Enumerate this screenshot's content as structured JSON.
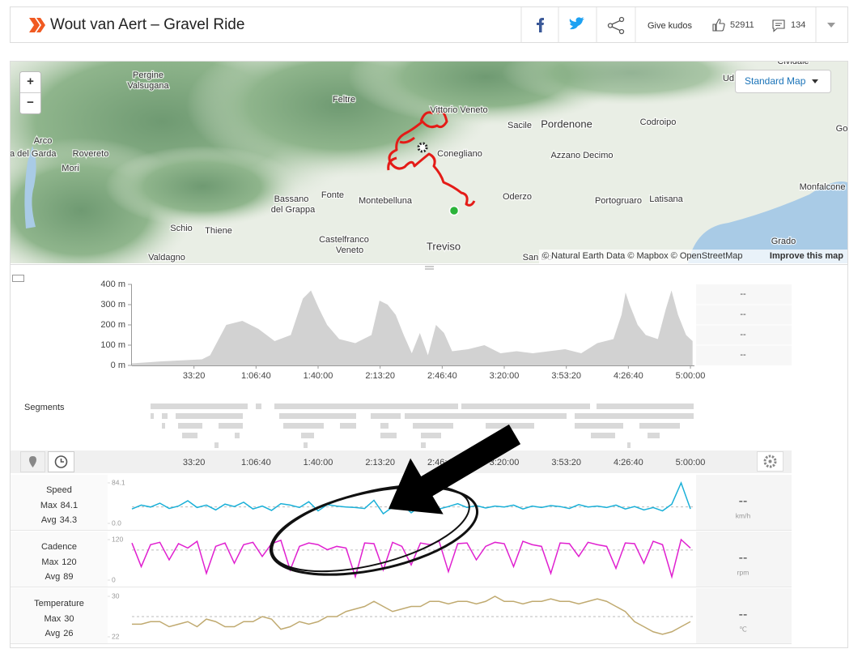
{
  "header": {
    "title": "Wout van Aert – Gravel Ride",
    "kudos_label": "Give kudos",
    "kudos": 52911,
    "comments": 134
  },
  "map": {
    "labels": [
      "Pergine",
      "Valsugana",
      "Feltre",
      "Vittorio Veneto",
      "Sacile",
      "Pordenone",
      "Codroipo",
      "Ud",
      "Arco",
      "va del Garda",
      "Rovereto",
      "Mori",
      "Conegliano",
      "Azzano Decimo",
      "Bassano",
      "del Grappa",
      "Fonte",
      "Montebelluna",
      "Oderzo",
      "Portogruaro",
      "Latisana",
      "Monfalcone",
      "Go",
      "Schio",
      "Thiene",
      "Castelfranco",
      "Veneto",
      "Treviso",
      "Valdagno",
      "Grado",
      "San Do",
      "Cividale"
    ],
    "style": "Standard Map",
    "zoom_in": "+",
    "zoom_out": "−",
    "attribution": "© Natural Earth Data © Mapbox © OpenStreetMap",
    "improve": "Improve this map"
  },
  "segments_label": "Segments",
  "chart_data": [
    {
      "type": "area",
      "color": "#d2d2d2",
      "xlim": [
        0,
        18130
      ],
      "ylim": [
        0,
        400
      ],
      "yticks": [
        {
          "value": 0,
          "label": "0 m"
        },
        {
          "value": 100,
          "label": "100 m"
        },
        {
          "value": 200,
          "label": "200 m"
        },
        {
          "value": 300,
          "label": "300 m"
        },
        {
          "value": 400,
          "label": "400 m"
        }
      ],
      "xticks": [
        {
          "value": 2000,
          "label": "33:20"
        },
        {
          "value": 4000,
          "label": "1:06:40"
        },
        {
          "value": 6000,
          "label": "1:40:00"
        },
        {
          "value": 8000,
          "label": "2:13:20"
        },
        {
          "value": 10000,
          "label": "2:46:40"
        },
        {
          "value": 12000,
          "label": "3:20:00"
        },
        {
          "value": 14000,
          "label": "3:53:20"
        },
        {
          "value": 16000,
          "label": "4:26:40"
        },
        {
          "value": 18000,
          "label": "5:00:00"
        }
      ],
      "x": [
        0,
        960,
        2260,
        2520,
        3040,
        3560,
        4080,
        4600,
        5120,
        5510,
        5770,
        6030,
        6290,
        6680,
        7200,
        7720,
        7980,
        8240,
        8500,
        8760,
        9020,
        9280,
        9540,
        9800,
        10060,
        10320,
        10840,
        11360,
        11880,
        12400,
        12920,
        13440,
        13960,
        14480,
        15000,
        15520,
        15780,
        15910,
        16040,
        16300,
        16560,
        16950,
        17210,
        17390,
        17600,
        17860,
        18070
      ],
      "values": [
        10,
        20,
        30,
        50,
        200,
        220,
        180,
        120,
        150,
        330,
        370,
        280,
        200,
        130,
        110,
        150,
        320,
        300,
        250,
        150,
        60,
        160,
        50,
        200,
        160,
        70,
        80,
        100,
        60,
        70,
        60,
        70,
        80,
        60,
        110,
        130,
        250,
        360,
        300,
        200,
        150,
        130,
        280,
        370,
        250,
        150,
        120
      ],
      "stats": [
        "--",
        "--",
        "--",
        "--"
      ]
    },
    {
      "type": "line",
      "name": "Speed",
      "color": "#1ab0d8",
      "max_label": "Max",
      "max": 84.1,
      "avg_label": "Avg",
      "avg": 34.3,
      "unit": "km/h",
      "current": "--",
      "xlim": [
        0,
        18130
      ],
      "ylim": [
        0,
        84.1
      ],
      "yticks": [
        {
          "value": 0,
          "label": "0.0"
        },
        84.1
      ],
      "x": [
        0,
        300,
        600,
        900,
        1200,
        1500,
        1800,
        2100,
        2400,
        2700,
        3000,
        3300,
        3600,
        3900,
        4200,
        4500,
        4800,
        5100,
        5400,
        5700,
        6000,
        6300,
        6600,
        6900,
        7200,
        7500,
        7800,
        8100,
        8400,
        8700,
        9000,
        9300,
        9600,
        9900,
        10200,
        10500,
        10800,
        11100,
        11400,
        11700,
        12000,
        12300,
        12600,
        12900,
        13200,
        13500,
        13800,
        14100,
        14400,
        14700,
        15000,
        15300,
        15600,
        15900,
        16200,
        16500,
        16800,
        17100,
        17400,
        17700,
        18000
      ],
      "values": [
        30,
        38,
        34,
        42,
        31,
        36,
        47,
        33,
        38,
        28,
        40,
        35,
        44,
        30,
        36,
        27,
        41,
        38,
        33,
        45,
        26,
        39,
        36,
        34,
        33,
        31,
        48,
        20,
        34,
        40,
        22,
        36,
        38,
        30,
        35,
        41,
        33,
        37,
        32,
        36,
        34,
        38,
        30,
        36,
        33,
        37,
        35,
        31,
        39,
        34,
        36,
        33,
        38,
        30,
        35,
        28,
        33,
        26,
        40,
        84.1,
        30
      ]
    },
    {
      "type": "line",
      "name": "Cadence",
      "color": "#e020d0",
      "max_label": "Max",
      "max": 120,
      "avg_label": "Avg",
      "avg": 89,
      "unit": "rpm",
      "current": "--",
      "xlim": [
        0,
        18130
      ],
      "ylim": [
        0,
        120
      ],
      "yticks": [
        0,
        120
      ],
      "x": [
        0,
        300,
        600,
        900,
        1200,
        1500,
        1800,
        2100,
        2400,
        2700,
        3000,
        3300,
        3600,
        3900,
        4200,
        4500,
        4800,
        5100,
        5400,
        5700,
        6000,
        6300,
        6600,
        6900,
        7200,
        7500,
        7800,
        8100,
        8400,
        8700,
        9000,
        9300,
        9600,
        9900,
        10200,
        10500,
        10800,
        11100,
        11400,
        11700,
        12000,
        12300,
        12600,
        12900,
        13200,
        13500,
        13800,
        14100,
        14400,
        14700,
        15000,
        15300,
        15600,
        15900,
        16200,
        16500,
        16800,
        17100,
        17400,
        17700,
        18000
      ],
      "values": [
        110,
        40,
        105,
        112,
        60,
        108,
        95,
        115,
        20,
        100,
        110,
        50,
        105,
        112,
        70,
        108,
        118,
        30,
        100,
        110,
        105,
        90,
        100,
        95,
        10,
        110,
        108,
        30,
        112,
        100,
        45,
        110,
        105,
        115,
        25,
        108,
        110,
        60,
        100,
        112,
        108,
        40,
        115,
        105,
        100,
        20,
        110,
        108,
        70,
        112,
        105,
        100,
        35,
        110,
        108,
        50,
        115,
        105,
        10,
        120,
        95
      ]
    },
    {
      "type": "line",
      "name": "Temperature",
      "color": "#c0aa70",
      "max_label": "Max",
      "max": 30,
      "avg_label": "Avg",
      "avg": 26,
      "unit": "℃",
      "current": "--",
      "xlim": [
        0,
        18130
      ],
      "ylim": [
        22,
        30
      ],
      "yticks": [
        22,
        30
      ],
      "x": [
        0,
        300,
        600,
        900,
        1200,
        1500,
        1800,
        2100,
        2400,
        2700,
        3000,
        3300,
        3600,
        3900,
        4200,
        4500,
        4800,
        5100,
        5400,
        5700,
        6000,
        6300,
        6600,
        6900,
        7200,
        7500,
        7800,
        8100,
        8400,
        8700,
        9000,
        9300,
        9600,
        9900,
        10200,
        10500,
        10800,
        11100,
        11400,
        11700,
        12000,
        12300,
        12600,
        12900,
        13200,
        13500,
        13800,
        14100,
        14400,
        14700,
        15000,
        15300,
        15600,
        15900,
        16200,
        16500,
        16800,
        17100,
        17400,
        17700,
        18000
      ],
      "values": [
        24.5,
        24.5,
        25,
        25,
        24,
        24.5,
        25,
        24,
        25.5,
        25,
        24,
        24,
        25,
        25,
        26,
        25.5,
        23.5,
        24,
        25,
        24.5,
        25,
        26,
        26,
        27,
        27.5,
        28,
        29,
        28,
        27,
        27.5,
        28,
        28,
        29,
        29,
        28.5,
        29,
        29,
        28.5,
        29,
        30,
        29,
        29,
        28.5,
        29,
        29,
        29.5,
        29,
        29,
        28.5,
        29,
        29.5,
        29,
        28,
        27,
        25,
        24,
        23,
        22.5,
        23,
        24,
        25
      ]
    }
  ]
}
